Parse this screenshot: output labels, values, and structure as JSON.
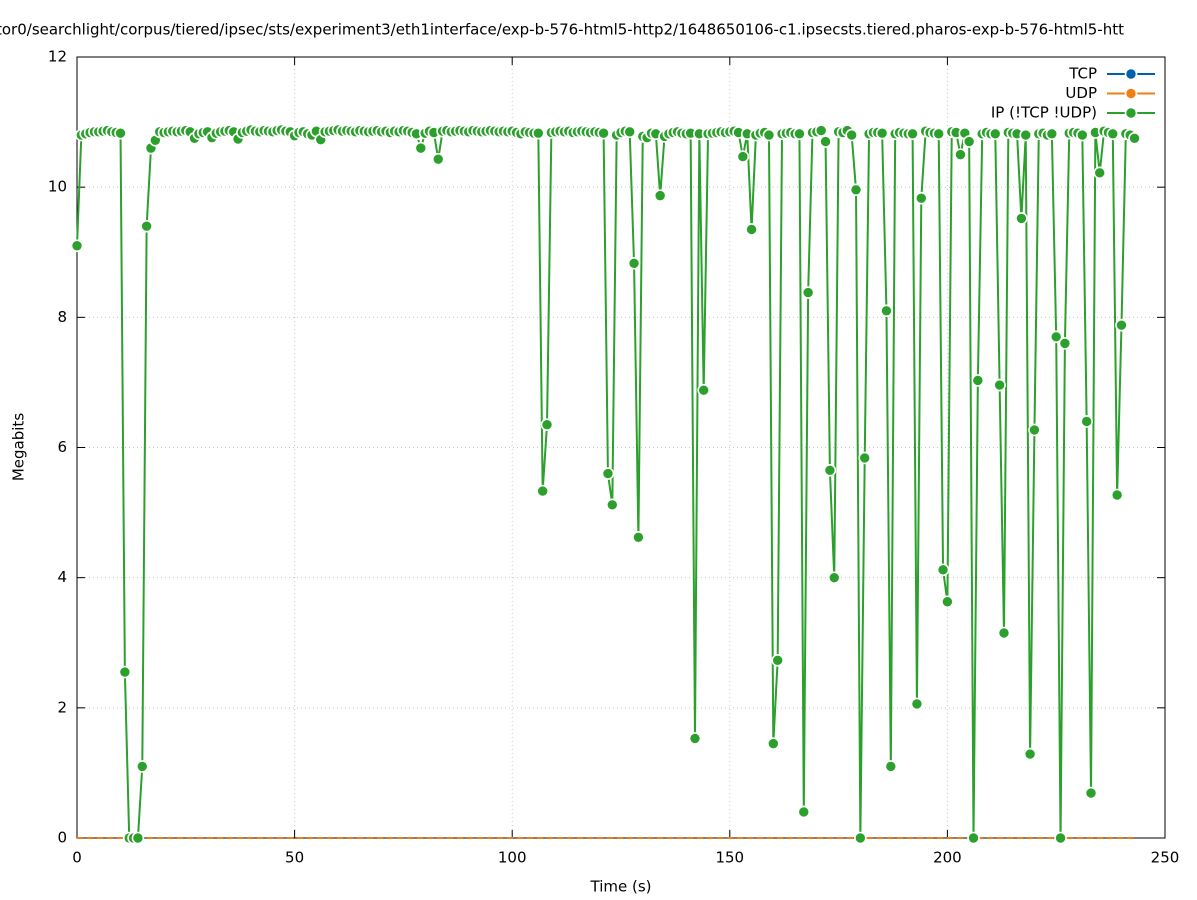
{
  "chart_data": {
    "type": "line",
    "title": "tor0/searchlight/corpus/tiered/ipsec/sts/experiment3/eth1interface/exp-b-576-html5-http2/1648650106-c1.ipsecsts.tiered.pharos-exp-b-576-html5-htt",
    "xlabel": "Time (s)",
    "ylabel": "Megabits",
    "xlim": [
      0,
      250
    ],
    "ylim": [
      0,
      12
    ],
    "xticks": [
      0,
      50,
      100,
      150,
      200,
      250
    ],
    "yticks": [
      0,
      2,
      4,
      6,
      8,
      10,
      12
    ],
    "grid": true,
    "legend": "top right",
    "x": [
      0,
      1,
      2,
      3,
      4,
      5,
      6,
      7,
      8,
      9,
      10,
      11,
      12,
      13,
      14,
      15,
      16,
      17,
      18,
      19,
      20,
      21,
      22,
      23,
      24,
      25,
      26,
      27,
      28,
      29,
      30,
      31,
      32,
      33,
      34,
      35,
      36,
      37,
      38,
      39,
      40,
      41,
      42,
      43,
      44,
      45,
      46,
      47,
      48,
      49,
      50,
      51,
      52,
      53,
      54,
      55,
      56,
      57,
      58,
      59,
      60,
      61,
      62,
      63,
      64,
      65,
      66,
      67,
      68,
      69,
      70,
      71,
      72,
      73,
      74,
      75,
      76,
      77,
      78,
      79,
      80,
      81,
      82,
      83,
      84,
      85,
      86,
      87,
      88,
      89,
      90,
      91,
      92,
      93,
      94,
      95,
      96,
      97,
      98,
      99,
      100,
      101,
      102,
      103,
      104,
      105,
      106,
      107,
      108,
      109,
      110,
      111,
      112,
      113,
      114,
      115,
      116,
      117,
      118,
      119,
      120,
      121,
      122,
      123,
      124,
      125,
      126,
      127,
      128,
      129,
      130,
      131,
      132,
      133,
      134,
      135,
      136,
      137,
      138,
      139,
      140,
      141,
      142,
      143,
      144,
      145,
      146,
      147,
      148,
      149,
      150,
      151,
      152,
      153,
      154,
      155,
      156,
      157,
      158,
      159,
      160,
      161,
      162,
      163,
      164,
      165,
      166,
      167,
      168,
      169,
      170,
      171,
      172,
      173,
      174,
      175,
      176,
      177,
      178,
      179,
      180,
      181,
      182,
      183,
      184,
      185,
      186,
      187,
      188,
      189,
      190,
      191,
      192,
      193,
      194,
      195,
      196,
      197,
      198,
      199,
      200,
      201,
      202,
      203,
      204,
      205,
      206,
      207,
      208,
      209,
      210,
      211,
      212,
      213,
      214,
      215,
      216,
      217,
      218,
      219,
      220,
      221,
      222,
      223,
      224,
      225,
      226,
      227,
      228,
      229,
      230,
      231,
      232,
      233,
      234,
      235,
      236,
      237,
      238,
      239,
      240,
      241,
      242,
      243
    ],
    "series": [
      {
        "name": "TCP",
        "color": "#0060ad",
        "values": [
          0,
          0,
          0,
          0,
          0,
          0,
          0,
          0,
          0,
          0,
          0,
          0,
          0,
          0,
          0,
          0,
          0,
          0,
          0,
          0,
          0,
          0,
          0,
          0,
          0,
          0,
          0,
          0,
          0,
          0,
          0,
          0,
          0,
          0,
          0,
          0,
          0,
          0,
          0,
          0,
          0,
          0,
          0,
          0,
          0,
          0,
          0,
          0,
          0,
          0,
          0,
          0,
          0,
          0,
          0,
          0,
          0,
          0,
          0,
          0,
          0,
          0,
          0,
          0,
          0,
          0,
          0,
          0,
          0,
          0,
          0,
          0,
          0,
          0,
          0,
          0,
          0,
          0,
          0,
          0,
          0,
          0,
          0,
          0,
          0,
          0,
          0,
          0,
          0,
          0,
          0,
          0,
          0,
          0,
          0,
          0,
          0,
          0,
          0,
          0,
          0,
          0,
          0,
          0,
          0,
          0,
          0,
          0,
          0,
          0,
          0,
          0,
          0,
          0,
          0,
          0,
          0,
          0,
          0,
          0,
          0,
          0,
          0,
          0,
          0,
          0,
          0,
          0,
          0,
          0,
          0,
          0,
          0,
          0,
          0,
          0,
          0,
          0,
          0,
          0,
          0,
          0,
          0,
          0,
          0,
          0,
          0,
          0,
          0,
          0,
          0,
          0,
          0,
          0,
          0,
          0,
          0,
          0,
          0,
          0,
          0,
          0,
          0,
          0,
          0,
          0,
          0,
          0,
          0,
          0,
          0,
          0,
          0,
          0,
          0,
          0,
          0,
          0,
          0,
          0,
          0,
          0,
          0,
          0,
          0,
          0,
          0,
          0,
          0,
          0,
          0,
          0,
          0,
          0,
          0,
          0,
          0,
          0,
          0,
          0,
          0,
          0,
          0,
          0,
          0,
          0,
          0,
          0,
          0,
          0,
          0,
          0,
          0,
          0,
          0,
          0,
          0,
          0,
          0,
          0,
          0,
          0,
          0,
          0,
          0,
          0,
          0,
          0,
          0,
          0,
          0,
          0,
          0,
          0,
          0,
          0,
          0,
          0,
          0,
          0,
          0,
          0,
          0,
          0
        ]
      },
      {
        "name": "UDP",
        "color": "#ef7f12",
        "values": [
          0,
          0,
          0,
          0,
          0,
          0,
          0,
          0,
          0,
          0,
          0,
          0,
          0,
          0,
          0,
          0,
          0,
          0,
          0,
          0,
          0,
          0,
          0,
          0,
          0,
          0,
          0,
          0,
          0,
          0,
          0,
          0,
          0,
          0,
          0,
          0,
          0,
          0,
          0,
          0,
          0,
          0,
          0,
          0,
          0,
          0,
          0,
          0,
          0,
          0,
          0,
          0,
          0,
          0,
          0,
          0,
          0,
          0,
          0,
          0,
          0,
          0,
          0,
          0,
          0,
          0,
          0,
          0,
          0,
          0,
          0,
          0,
          0,
          0,
          0,
          0,
          0,
          0,
          0,
          0,
          0,
          0,
          0,
          0,
          0,
          0,
          0,
          0,
          0,
          0,
          0,
          0,
          0,
          0,
          0,
          0,
          0,
          0,
          0,
          0,
          0,
          0,
          0,
          0,
          0,
          0,
          0,
          0,
          0,
          0,
          0,
          0,
          0,
          0,
          0,
          0,
          0,
          0,
          0,
          0,
          0,
          0,
          0,
          0,
          0,
          0,
          0,
          0,
          0,
          0,
          0,
          0,
          0,
          0,
          0,
          0,
          0,
          0,
          0,
          0,
          0,
          0,
          0,
          0,
          0,
          0,
          0,
          0,
          0,
          0,
          0,
          0,
          0,
          0,
          0,
          0,
          0,
          0,
          0,
          0,
          0,
          0,
          0,
          0,
          0,
          0,
          0,
          0,
          0,
          0,
          0,
          0,
          0,
          0,
          0,
          0,
          0,
          0,
          0,
          0,
          0,
          0,
          0,
          0,
          0,
          0,
          0,
          0,
          0,
          0,
          0,
          0,
          0,
          0,
          0,
          0,
          0,
          0,
          0,
          0,
          0,
          0,
          0,
          0,
          0,
          0,
          0,
          0,
          0,
          0,
          0,
          0,
          0,
          0,
          0,
          0,
          0,
          0,
          0,
          0,
          0,
          0,
          0,
          0,
          0,
          0,
          0,
          0,
          0,
          0,
          0,
          0,
          0,
          0,
          0,
          0,
          0,
          0,
          0,
          0,
          0,
          0,
          0,
          0
        ]
      },
      {
        "name": "IP (!TCP  !UDP)",
        "color": "#2ca02c",
        "values": [
          9.1,
          10.8,
          10.82,
          10.84,
          10.85,
          10.85,
          10.86,
          10.87,
          10.85,
          10.84,
          10.83,
          2.55,
          0,
          0,
          0,
          1.1,
          9.4,
          10.6,
          10.72,
          10.85,
          10.84,
          10.85,
          10.86,
          10.85,
          10.86,
          10.87,
          10.85,
          10.75,
          10.82,
          10.84,
          10.85,
          10.76,
          10.83,
          10.85,
          10.86,
          10.87,
          10.85,
          10.74,
          10.84,
          10.86,
          10.88,
          10.86,
          10.85,
          10.87,
          10.86,
          10.85,
          10.87,
          10.88,
          10.86,
          10.85,
          10.79,
          10.84,
          10.85,
          10.82,
          10.8,
          10.86,
          10.73,
          10.85,
          10.86,
          10.87,
          10.88,
          10.86,
          10.87,
          10.86,
          10.85,
          10.87,
          10.86,
          10.85,
          10.86,
          10.87,
          10.85,
          10.86,
          10.84,
          10.86,
          10.85,
          10.87,
          10.86,
          10.84,
          10.82,
          10.6,
          10.83,
          10.86,
          10.84,
          10.43,
          10.86,
          10.87,
          10.85,
          10.86,
          10.87,
          10.86,
          10.85,
          10.87,
          10.86,
          10.85,
          10.86,
          10.87,
          10.86,
          10.85,
          10.86,
          10.85,
          10.86,
          10.84,
          10.82,
          10.85,
          10.84,
          10.83,
          10.83,
          5.33,
          6.35,
          10.84,
          10.85,
          10.86,
          10.85,
          10.86,
          10.84,
          10.85,
          10.86,
          10.85,
          10.84,
          10.85,
          10.84,
          10.83,
          5.6,
          5.12,
          10.8,
          10.84,
          10.86,
          10.85,
          8.83,
          4.62,
          10.78,
          10.76,
          10.83,
          10.82,
          9.87,
          10.78,
          10.82,
          10.84,
          10.85,
          10.83,
          10.82,
          10.83,
          1.53,
          10.82,
          6.88,
          10.82,
          10.83,
          10.84,
          10.85,
          10.84,
          10.85,
          10.86,
          10.84,
          10.47,
          10.82,
          9.35,
          10.8,
          10.83,
          10.84,
          10.8,
          1.45,
          2.73,
          10.82,
          10.83,
          10.84,
          10.82,
          10.82,
          0.4,
          8.38,
          10.84,
          10.85,
          10.87,
          10.7,
          5.65,
          4.0,
          10.85,
          10.84,
          10.87,
          10.8,
          9.96,
          0,
          5.84,
          10.82,
          10.84,
          10.84,
          10.83,
          8.1,
          1.1,
          10.82,
          10.84,
          10.83,
          10.82,
          10.82,
          2.06,
          9.83,
          10.86,
          10.84,
          10.83,
          10.82,
          4.12,
          3.63,
          10.85,
          10.84,
          10.5,
          10.83,
          10.7,
          0,
          7.03,
          10.82,
          10.84,
          10.82,
          10.82,
          6.96,
          3.15,
          10.84,
          10.83,
          10.82,
          9.52,
          10.8,
          1.29,
          6.27,
          10.82,
          10.83,
          10.8,
          10.82,
          7.7,
          0,
          7.6,
          10.83,
          10.84,
          10.83,
          10.8,
          6.4,
          0.69,
          10.84,
          10.22,
          10.86,
          10.84,
          10.82,
          5.27,
          7.88,
          10.82,
          10.8,
          10.75
        ]
      }
    ]
  }
}
